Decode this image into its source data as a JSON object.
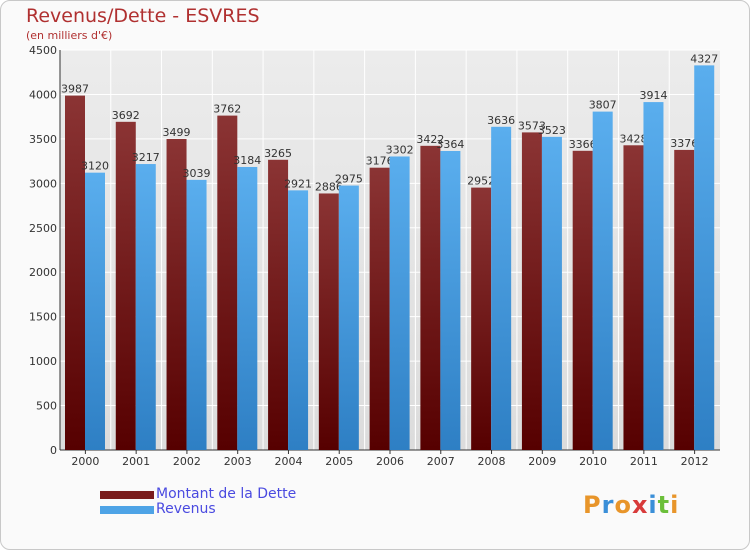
{
  "title": "Revenus/Dette - ESVRES",
  "subtitle": "(en milliers d'€)",
  "colors": {
    "dette": "#7a1c1c",
    "revenus": "#4ea3e6",
    "title": "#b03030",
    "legend_text": "#4a4ae0"
  },
  "legend": {
    "dette_label": "Montant de la Dette",
    "revenus_label": "Revenus"
  },
  "logo": {
    "letters": [
      "P",
      "r",
      "o",
      "x",
      "i",
      "t",
      "i"
    ],
    "colors": [
      "#e8952a",
      "#3a8fd8",
      "#e8952a",
      "#d83a3a",
      "#3a8fd8",
      "#6bbf3a",
      "#e8952a"
    ]
  },
  "chart_data": {
    "type": "bar",
    "categories": [
      "2000",
      "2001",
      "2002",
      "2003",
      "2004",
      "2005",
      "2006",
      "2007",
      "2008",
      "2009",
      "2010",
      "2011",
      "2012"
    ],
    "series": [
      {
        "name": "Montant de la Dette",
        "values": [
          3987,
          3692,
          3499,
          3762,
          3265,
          2886,
          3176,
          3422,
          2952,
          3573,
          3366,
          3428,
          3376
        ]
      },
      {
        "name": "Revenus",
        "values": [
          3120,
          3217,
          3039,
          3184,
          2921,
          2975,
          3302,
          3364,
          3636,
          3523,
          3807,
          3914,
          4327
        ]
      }
    ],
    "yticks": [
      "0",
      "500",
      "1000",
      "1500",
      "2000",
      "2500",
      "3000",
      "3500",
      "4000",
      "4500"
    ],
    "ylim": [
      0,
      4500
    ],
    "grid": true,
    "legend_position": "bottom-left"
  }
}
